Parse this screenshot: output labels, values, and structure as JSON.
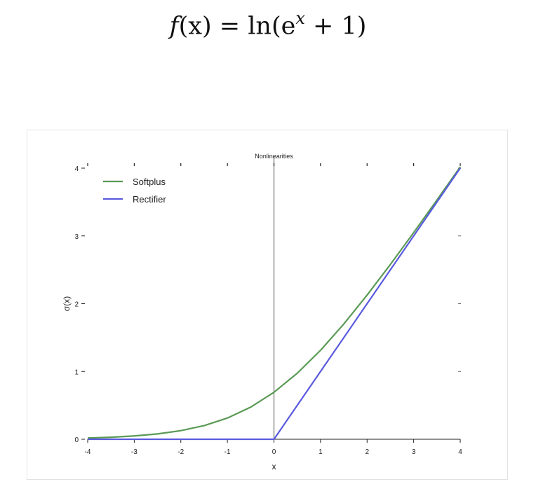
{
  "formula": {
    "lhs_fn": "f",
    "lhs_arg": "(x)",
    "equals": "=",
    "rhs_prefix": "ln(e",
    "rhs_sup": "x",
    "rhs_suffix": "+ 1)"
  },
  "chart_data": {
    "type": "line",
    "title": "Nonlinearities",
    "xlabel": "x",
    "ylabel": "σ(x)",
    "xlim": [
      -4,
      4
    ],
    "ylim": [
      0,
      4
    ],
    "xticks": [
      "-4",
      "-3",
      "-2",
      "-1",
      "0",
      "1",
      "2",
      "3",
      "4"
    ],
    "yticks": [
      "0",
      "1",
      "2",
      "3",
      "4"
    ],
    "legend_position": "top-left",
    "grid": false,
    "series": [
      {
        "name": "Softplus",
        "color": "#5a9a55",
        "x": [
          -4,
          -3.5,
          -3,
          -2.5,
          -2,
          -1.5,
          -1,
          -0.5,
          0,
          0.5,
          1,
          1.5,
          2,
          2.5,
          3,
          3.5,
          4
        ],
        "y": [
          0.018,
          0.03,
          0.049,
          0.079,
          0.127,
          0.201,
          0.313,
          0.474,
          0.693,
          0.974,
          1.313,
          1.701,
          2.127,
          2.579,
          3.049,
          3.53,
          4.018
        ]
      },
      {
        "name": "Rectifier",
        "color": "#5a5ae0",
        "x": [
          -4,
          0,
          4
        ],
        "y": [
          0,
          0,
          4
        ]
      }
    ]
  }
}
